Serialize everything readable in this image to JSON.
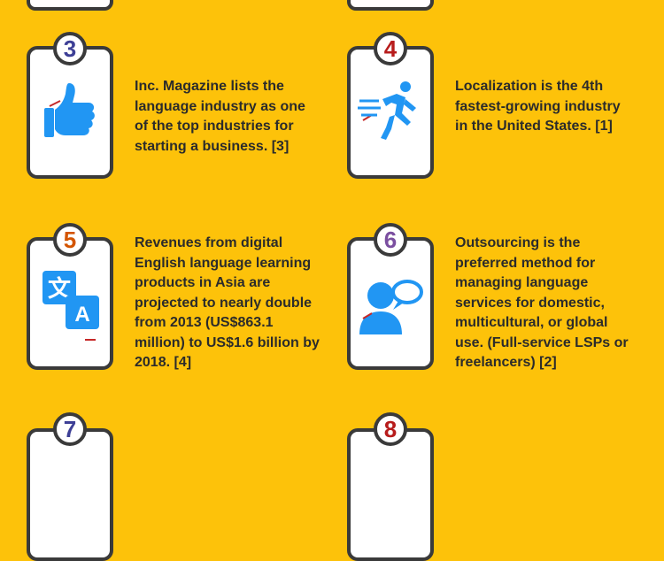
{
  "colors": {
    "background": "#FDC20A",
    "card_border": "#3a3a3a",
    "icon_blue": "#2196F3",
    "accent_red": "#C62828"
  },
  "facts": [
    {
      "number": "3",
      "number_color": "#3D3F96",
      "icon": "thumbs-up-icon",
      "text": "Inc. Magazine lists the language industry as one of the top industries for starting a business. [3]"
    },
    {
      "number": "4",
      "number_color": "#B71C1C",
      "icon": "running-person-icon",
      "text": "Localization is the 4th fastest-growing industry in the United States. [1]"
    },
    {
      "number": "5",
      "number_color": "#D35400",
      "icon": "translate-icon",
      "icon_glyphs": {
        "source": "文",
        "target": "A"
      },
      "text": "Revenues from digital English language learning products in Asia are projected to nearly double from 2013 (US$863.1 million) to US$1.6 billion by 2018. [4]"
    },
    {
      "number": "6",
      "number_color": "#7B4FA0",
      "icon": "person-speech-bubble-icon",
      "text": "Outsourcing is the preferred method for managing language services for domestic, multicultural, or global use. (Full-service LSPs or freelancers) [2]"
    },
    {
      "number": "7",
      "number_color": "#3D3F96",
      "icon": "",
      "text": ""
    },
    {
      "number": "8",
      "number_color": "#B71C1C",
      "icon": "",
      "text": ""
    }
  ]
}
